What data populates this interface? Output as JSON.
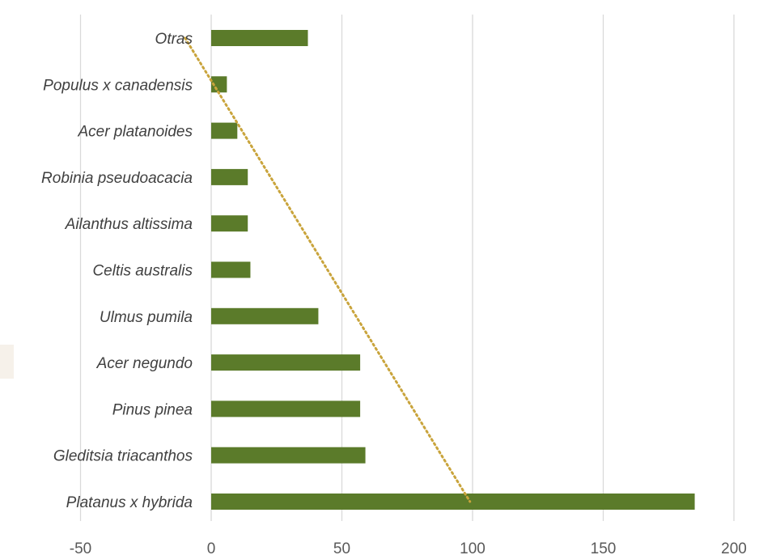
{
  "chart_data": {
    "type": "bar",
    "orientation": "horizontal",
    "categories": [
      "Platanus x hybrida",
      "Gleditsia triacanthos",
      "Pinus pinea",
      "Acer negundo",
      "Ulmus pumila",
      "Celtis australis",
      "Ailanthus altissima",
      "Robinia pseudoacacia",
      "Acer platanoides",
      "Populus x canadensis",
      "Otras"
    ],
    "values": [
      185,
      59,
      57,
      57,
      41,
      15,
      14,
      14,
      10,
      6,
      37
    ],
    "xlim": [
      -50,
      200
    ],
    "xticks": [
      -50,
      0,
      50,
      100,
      150,
      200
    ],
    "grid": true,
    "bar_color": "#5b7b2a",
    "trendline": {
      "style": "dotted",
      "color": "#c9a43c",
      "from": {
        "category": "Otras",
        "x": -10
      },
      "to": {
        "category": "Platanus x hybrida",
        "x": 99
      }
    }
  }
}
